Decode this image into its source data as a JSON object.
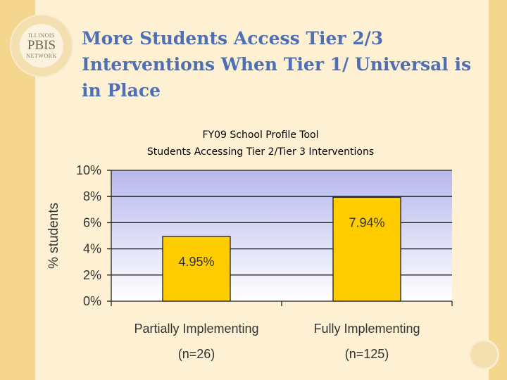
{
  "slide": {
    "title": "More Students Access Tier 2/3 Interventions When Tier 1/ Universal is in Place",
    "logo": {
      "top_text": "ILLINOIS",
      "middle_text": "PBIS",
      "bottom_text": "NETWORK"
    }
  },
  "colors": {
    "band": "#f5d68e",
    "panel": "#fdf0d3",
    "title": "#4f6fb4",
    "bar": "#ffcc00",
    "plot_top": "#b6b8ee",
    "plot_bottom": "#ffffff"
  },
  "chart_data": {
    "type": "bar",
    "title": "FY09 School Profile Tool",
    "subtitle": "Students Accessing Tier 2/Tier 3 Interventions",
    "ylabel": "% students",
    "xlabel": "",
    "ylim": [
      0,
      10
    ],
    "yticks": [
      0,
      2,
      4,
      6,
      8,
      10
    ],
    "ytick_labels": [
      "0%",
      "2%",
      "4%",
      "6%",
      "8%",
      "10%"
    ],
    "categories": [
      "Partially Implementing",
      "Fully Implementing"
    ],
    "category_sublabels": [
      "(n=26)",
      "(n=125)"
    ],
    "values": [
      4.95,
      7.94
    ],
    "data_labels": [
      "4.95%",
      "7.94%"
    ],
    "grid": true,
    "legend": "none"
  }
}
